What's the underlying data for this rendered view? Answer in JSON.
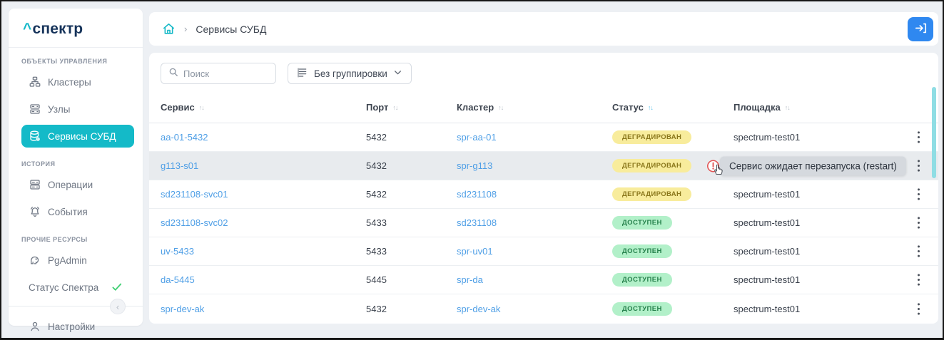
{
  "app": {
    "logo_caret": "^",
    "logo_text": "спектр"
  },
  "sidebar": {
    "sections": [
      {
        "label": "ОБЪЕКТЫ УПРАВЛЕНИЯ",
        "items": [
          {
            "id": "clusters",
            "label": "Кластеры",
            "icon": "clusters-icon",
            "active": false
          },
          {
            "id": "nodes",
            "label": "Узлы",
            "icon": "nodes-icon",
            "active": false
          },
          {
            "id": "db-services",
            "label": "Сервисы СУБД",
            "icon": "db-services-icon",
            "active": true
          }
        ]
      },
      {
        "label": "ИСТОРИЯ",
        "items": [
          {
            "id": "operations",
            "label": "Операции",
            "icon": "operations-icon",
            "active": false
          },
          {
            "id": "events",
            "label": "События",
            "icon": "events-icon",
            "active": false
          }
        ]
      },
      {
        "label": "ПРОЧИЕ РЕСУРСЫ",
        "items": [
          {
            "id": "pgadmin",
            "label": "PgAdmin",
            "icon": "pgadmin-icon",
            "active": false
          },
          {
            "id": "spectrum-status",
            "label": "Статус Спектра",
            "icon": null,
            "check": true,
            "active": false
          }
        ]
      }
    ],
    "settings_label": "Настройки"
  },
  "breadcrumb": {
    "home_icon": "home-icon",
    "current": "Сервисы СУБД"
  },
  "header_actions": {
    "exit_icon": "login-arrow-icon"
  },
  "toolbar": {
    "search_placeholder": "Поиск",
    "grouping_label": "Без группировки"
  },
  "table": {
    "columns": [
      {
        "label": "Сервис",
        "sort": "inactive"
      },
      {
        "label": "Порт",
        "sort": "inactive"
      },
      {
        "label": "Кластер",
        "sort": "inactive"
      },
      {
        "label": "Статус",
        "sort": "active"
      },
      {
        "label": "Площадка",
        "sort": "inactive"
      }
    ],
    "rows": [
      {
        "service": "aa-01-5432",
        "port": "5432",
        "cluster": "spr-aa-01",
        "status": "ДЕГРАДИРОВАН",
        "status_type": "degraded",
        "site": "spectrum-test01",
        "highlighted": false
      },
      {
        "service": "g113-s01",
        "port": "5432",
        "cluster": "spr-g113",
        "status": "ДЕГРАДИРОВАН",
        "status_type": "degraded",
        "site": "",
        "highlighted": true,
        "tooltip": "Сервис ожидает перезапуска (restart)"
      },
      {
        "service": "sd231108-svc01",
        "port": "5432",
        "cluster": "sd231108",
        "status": "ДЕГРАДИРОВАН",
        "status_type": "degraded",
        "site": "spectrum-test01",
        "highlighted": false
      },
      {
        "service": "sd231108-svc02",
        "port": "5433",
        "cluster": "sd231108",
        "status": "ДОСТУПЕН",
        "status_type": "available",
        "site": "spectrum-test01",
        "highlighted": false
      },
      {
        "service": "uv-5433",
        "port": "5433",
        "cluster": "spr-uv01",
        "status": "ДОСТУПЕН",
        "status_type": "available",
        "site": "spectrum-test01",
        "highlighted": false
      },
      {
        "service": "da-5445",
        "port": "5445",
        "cluster": "spr-da",
        "status": "ДОСТУПЕН",
        "status_type": "available",
        "site": "spectrum-test01",
        "highlighted": false
      },
      {
        "service": "spr-dev-ak",
        "port": "5432",
        "cluster": "spr-dev-ak",
        "status": "ДОСТУПЕН",
        "status_type": "available",
        "site": "spectrum-test01",
        "highlighted": false
      }
    ]
  },
  "colors": {
    "accent_teal": "#14bac8",
    "logo_navy": "#16335a",
    "link_blue": "#4f9fe6",
    "degraded_bg": "#f8ec9c",
    "degraded_text": "#8b781c",
    "available_bg": "#b2f0c9",
    "available_text": "#27824d",
    "exit_button_blue": "#2f88f0",
    "scrollbar_teal": "#8fdde4",
    "tooltip_bg": "#d5d9de",
    "warn_red": "#e25555",
    "check_green": "#3ecf72"
  }
}
